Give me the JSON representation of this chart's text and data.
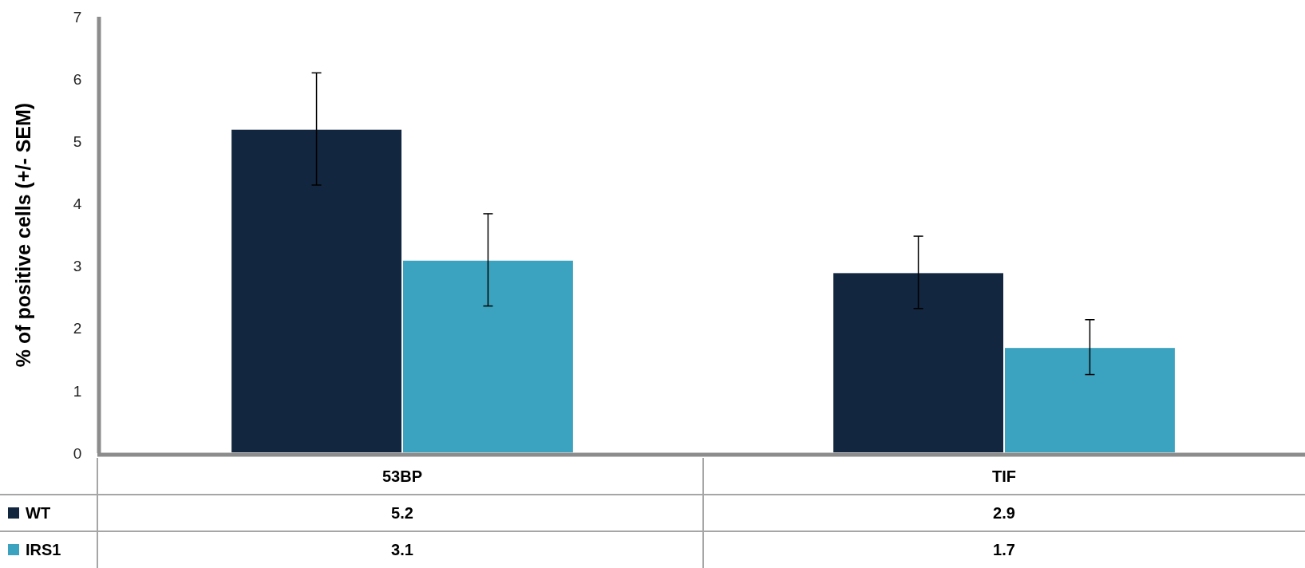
{
  "chart_data": {
    "type": "bar",
    "ylabel": "% of positive cells (+/- SEM)",
    "categories": [
      "53BP",
      "TIF"
    ],
    "series": [
      {
        "name": "WT",
        "color": "#12263f",
        "values": [
          5.2,
          2.9
        ],
        "errors": [
          0.9,
          0.58
        ]
      },
      {
        "name": "IRS1",
        "color": "#3ba3bf",
        "values": [
          3.1,
          1.7
        ],
        "errors": [
          0.74,
          0.44
        ]
      }
    ],
    "ylim": [
      0,
      7
    ],
    "yticks": [
      0,
      1,
      2,
      3,
      4,
      5,
      6,
      7
    ],
    "grid": false,
    "legend": "bottom",
    "data_labels": true
  }
}
